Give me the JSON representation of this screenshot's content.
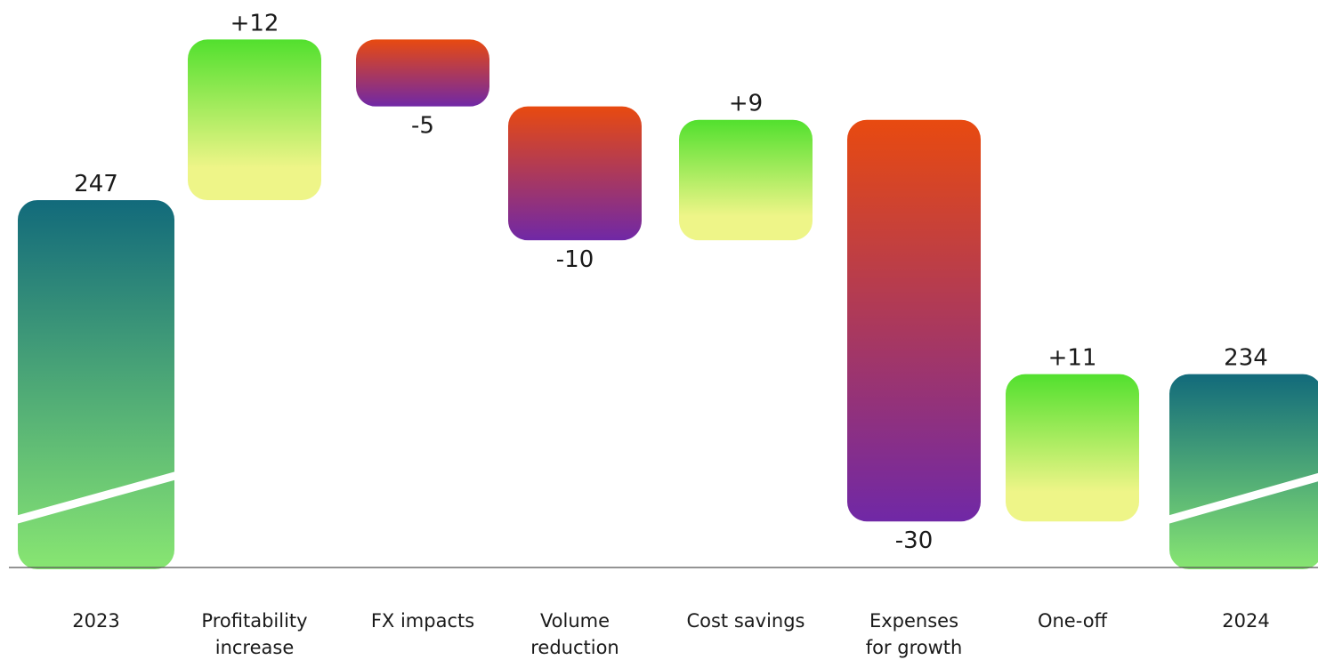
{
  "chart_data": {
    "type": "waterfall",
    "title": "",
    "xlabel": "",
    "ylabel": "",
    "axis_break": true,
    "categories": [
      {
        "label_lines": [
          "2023"
        ],
        "kind": "total",
        "value": 247,
        "value_label": "247"
      },
      {
        "label_lines": [
          "Profitability",
          "increase"
        ],
        "kind": "increase",
        "value": 12,
        "value_label": "+12"
      },
      {
        "label_lines": [
          "FX impacts"
        ],
        "kind": "decrease",
        "value": -5,
        "value_label": "-5"
      },
      {
        "label_lines": [
          "Volume",
          "reduction"
        ],
        "kind": "decrease",
        "value": -10,
        "value_label": "-10"
      },
      {
        "label_lines": [
          "Cost savings"
        ],
        "kind": "increase",
        "value": 9,
        "value_label": "+9"
      },
      {
        "label_lines": [
          "Expenses",
          "for growth"
        ],
        "kind": "decrease",
        "value": -30,
        "value_label": "-30"
      },
      {
        "label_lines": [
          "One-off"
        ],
        "kind": "increase",
        "value": 11,
        "value_label": "+11"
      },
      {
        "label_lines": [
          "2024"
        ],
        "kind": "total",
        "value": 234,
        "value_label": "234"
      }
    ],
    "colors": {
      "total_top": "#126a7b",
      "total_bottom": "#88e672",
      "increase_top": "#52e02e",
      "increase_bottom": "#eef588",
      "decrease_top": "#e84a10",
      "decrease_bottom": "#7028a6",
      "baseline": "#555555"
    }
  }
}
